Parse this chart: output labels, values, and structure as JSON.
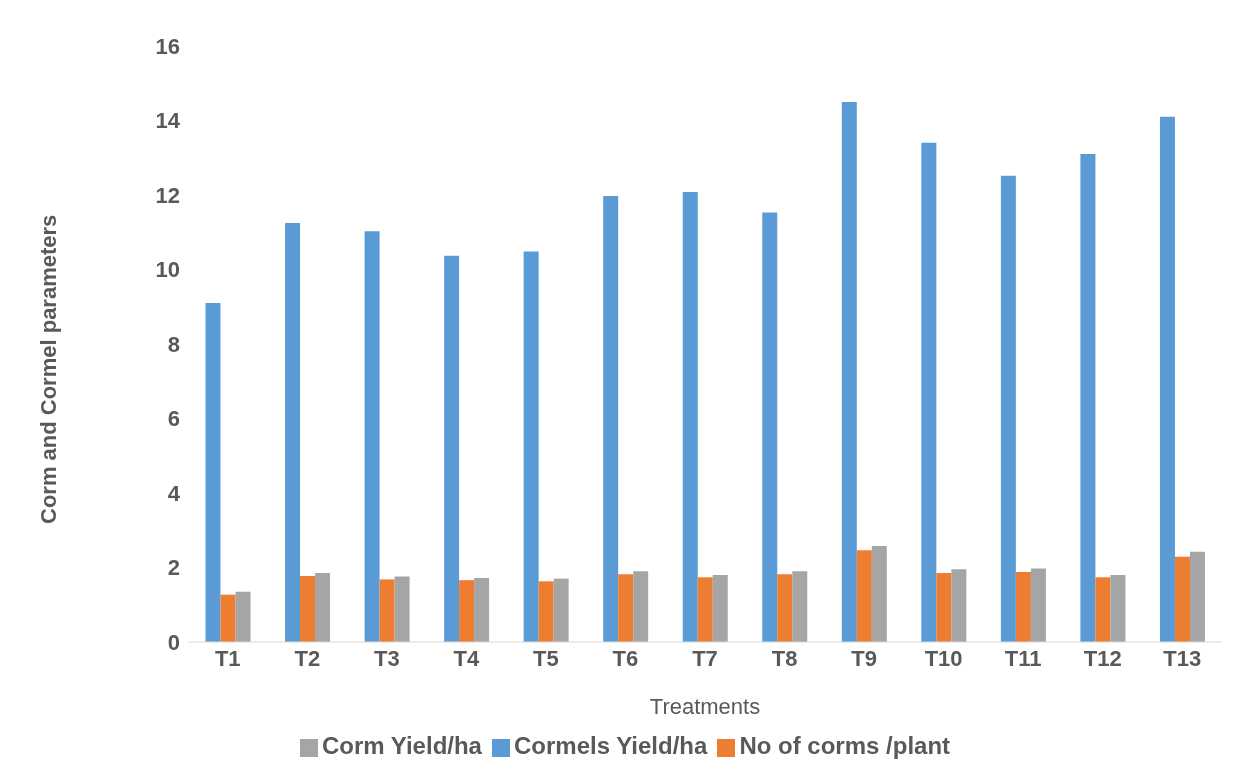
{
  "chart_data": {
    "type": "bar",
    "xlabel": "Treatments",
    "ylabel": "Corm and Cormel parameters",
    "categories": [
      "T1",
      "T2",
      "T3",
      "T4",
      "T5",
      "T6",
      "T7",
      "T8",
      "T9",
      "T10",
      "T11",
      "T12",
      "T13"
    ],
    "series": [
      {
        "name": "Cormels Yield/ha",
        "color": "#5b9bd5",
        "values": [
          9.1,
          11.25,
          11.03,
          10.37,
          10.48,
          11.97,
          12.08,
          11.53,
          14.5,
          13.4,
          12.52,
          13.1,
          14.1
        ]
      },
      {
        "name": "No of corms /plant",
        "color": "#ed7d31",
        "values": [
          1.27,
          1.77,
          1.68,
          1.66,
          1.63,
          1.82,
          1.74,
          1.82,
          2.46,
          1.85,
          1.88,
          1.74,
          2.29
        ]
      },
      {
        "name": "Corm Yield/ha",
        "color": "#a5a5a5",
        "values": [
          1.35,
          1.85,
          1.76,
          1.72,
          1.7,
          1.9,
          1.8,
          1.9,
          2.58,
          1.95,
          1.97,
          1.8,
          2.42
        ]
      }
    ],
    "ylim": [
      0,
      16
    ],
    "yticks": [
      0,
      2,
      4,
      6,
      8,
      10,
      12,
      14,
      16
    ],
    "grid": false,
    "legend": "bottom"
  }
}
